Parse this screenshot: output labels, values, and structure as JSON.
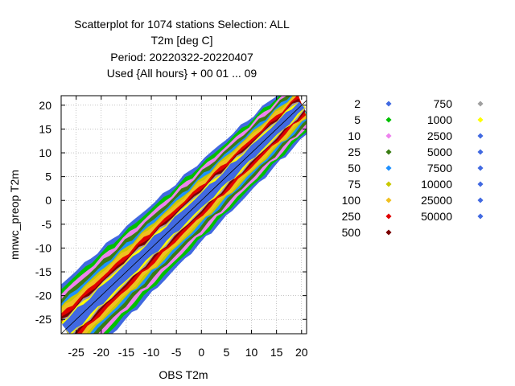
{
  "title_lines": [
    "Scatterplot for 1074 stations Selection: ALL",
    "T2m [deg C]",
    "Period: 20220322-20220407",
    "Used {All hours} + 00 01 ... 09"
  ],
  "chart_data": {
    "type": "scatter",
    "subtype": "density-scatter",
    "xlabel": "OBS T2m",
    "ylabel": "mnwc_preop T2m",
    "xlim": [
      -28,
      21
    ],
    "ylim": [
      -28,
      22
    ],
    "x_ticks": [
      -25,
      -20,
      -15,
      -10,
      -5,
      0,
      5,
      10,
      15,
      20
    ],
    "y_ticks": [
      -25,
      -20,
      -15,
      -10,
      -5,
      0,
      5,
      10,
      15,
      20
    ],
    "grid": true,
    "reference_line": "y = x",
    "legend_position": "right",
    "legend": [
      {
        "label": "2",
        "color": "#4169e1"
      },
      {
        "label": "5",
        "color": "#00c000"
      },
      {
        "label": "10",
        "color": "#ee82ee"
      },
      {
        "label": "25",
        "color": "#3a7d14"
      },
      {
        "label": "50",
        "color": "#1e90ff"
      },
      {
        "label": "75",
        "color": "#c8c800"
      },
      {
        "label": "100",
        "color": "#f0c020"
      },
      {
        "label": "250",
        "color": "#e00000"
      },
      {
        "label": "500",
        "color": "#7a0000"
      },
      {
        "label": "750",
        "color": "#a0a0a0"
      },
      {
        "label": "1000",
        "color": "#ffff00"
      },
      {
        "label": "2500",
        "color": "#4169e1"
      },
      {
        "label": "5000",
        "color": "#4169e1"
      },
      {
        "label": "7500",
        "color": "#4169e1"
      },
      {
        "label": "10000",
        "color": "#4169e1"
      },
      {
        "label": "25000",
        "color": "#4169e1"
      },
      {
        "label": "50000",
        "color": "#4169e1"
      }
    ],
    "density_bands": [
      {
        "level": "2",
        "color": "#4169e1",
        "half_width": 7.0
      },
      {
        "level": "5",
        "color": "#00c000",
        "half_width": 6.3
      },
      {
        "level": "10",
        "color": "#ee82ee",
        "half_width": 5.6
      },
      {
        "level": "25",
        "color": "#3a7d14",
        "half_width": 4.9
      },
      {
        "level": "50",
        "color": "#1e90ff",
        "half_width": 4.2
      },
      {
        "level": "75",
        "color": "#c8c800",
        "half_width": 3.7
      },
      {
        "level": "100",
        "color": "#f0c020",
        "half_width": 3.3
      },
      {
        "level": "250",
        "color": "#e00000",
        "half_width": 2.6
      },
      {
        "level": "500",
        "color": "#7a0000",
        "half_width": 2.0
      },
      {
        "level": "750",
        "color": "#a0a0a0",
        "half_width": 1.7
      },
      {
        "level": "1000",
        "color": "#ffff00",
        "half_width": 1.5
      },
      {
        "level": "2500",
        "color": "#4169e1",
        "half_width": 1.2
      }
    ],
    "data_range": {
      "x_min": -27,
      "x_max": 20,
      "y_min": -24,
      "y_max": 21
    }
  }
}
